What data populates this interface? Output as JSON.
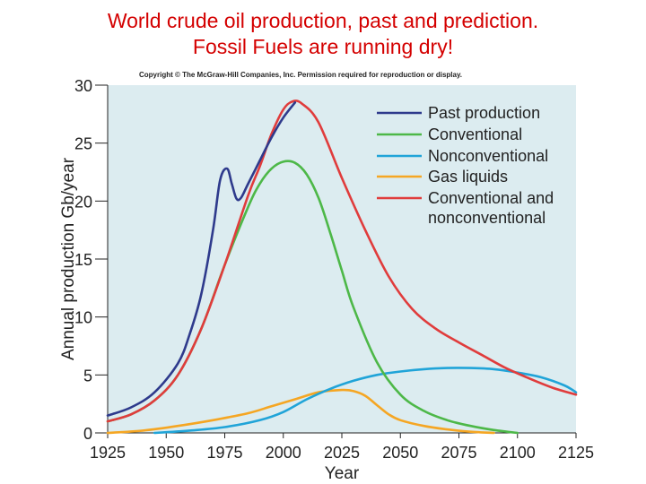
{
  "slide": {
    "title_line1": "World crude oil production, past and prediction.",
    "title_line2": "Fossil Fuels are running dry!"
  },
  "chart_data": {
    "type": "line",
    "copyright": "Copyright © The McGraw-Hill Companies, Inc. Permission required for reproduction or display.",
    "xlabel": "Year",
    "ylabel": "Annual production Gb/year",
    "xlim": [
      1925,
      2125
    ],
    "ylim": [
      0,
      30
    ],
    "xticks": [
      "1925",
      "1950",
      "1975",
      "2000",
      "2025",
      "2050",
      "2075",
      "2100",
      "2125"
    ],
    "yticks": [
      "0",
      "5",
      "10",
      "15",
      "20",
      "25",
      "30"
    ],
    "plot_background": "#dcecf0",
    "legend_position": "top-right",
    "series": [
      {
        "name": "Past production",
        "color": "#2e3a8c",
        "x": [
          1925,
          1935,
          1945,
          1955,
          1960,
          1965,
          1970,
          1973,
          1976,
          1978,
          1980,
          1982,
          1985,
          1990,
          1995,
          2000,
          2005
        ],
        "y": [
          1.5,
          2.2,
          3.5,
          6,
          8.5,
          12,
          17.5,
          21.8,
          22.8,
          21.5,
          20.2,
          20.3,
          21.5,
          23.5,
          25.5,
          27.2,
          28.5
        ]
      },
      {
        "name": "Conventional",
        "color": "#4db848",
        "x": [
          1925,
          1935,
          1945,
          1955,
          1965,
          1975,
          1985,
          1990,
          1995,
          2000,
          2005,
          2010,
          2015,
          2020,
          2025,
          2030,
          2040,
          2050,
          2060,
          2070,
          2080,
          2090,
          2100
        ],
        "y": [
          1,
          1.6,
          2.8,
          5,
          9,
          14.5,
          19.5,
          21.5,
          22.8,
          23.4,
          23.3,
          22.3,
          20.3,
          17.3,
          14,
          10.8,
          6.1,
          3.3,
          1.9,
          1.1,
          0.6,
          0.25,
          0
        ]
      },
      {
        "name": "Nonconventional",
        "color": "#20a4d8",
        "x": [
          1945,
          1960,
          1975,
          1990,
          2000,
          2010,
          2020,
          2030,
          2040,
          2050,
          2060,
          2070,
          2080,
          2090,
          2100,
          2110,
          2120,
          2125
        ],
        "y": [
          0,
          0.2,
          0.5,
          1.1,
          1.8,
          2.9,
          3.8,
          4.5,
          5,
          5.3,
          5.5,
          5.6,
          5.6,
          5.5,
          5.2,
          4.8,
          4.1,
          3.5
        ]
      },
      {
        "name": "Gas liquids",
        "color": "#f5a623",
        "x": [
          1925,
          1940,
          1955,
          1970,
          1985,
          1995,
          2005,
          2015,
          2025,
          2030,
          2035,
          2040,
          2045,
          2050,
          2060,
          2070,
          2080,
          2090
        ],
        "y": [
          0,
          0.2,
          0.6,
          1.1,
          1.7,
          2.3,
          2.9,
          3.5,
          3.7,
          3.6,
          3.2,
          2.4,
          1.6,
          1.1,
          0.6,
          0.3,
          0.1,
          0
        ]
      },
      {
        "name": "Conventional and nonconventional",
        "color": "#e03c3c",
        "x": [
          1925,
          1935,
          1945,
          1955,
          1965,
          1975,
          1985,
          1990,
          1995,
          2000,
          2004,
          2008,
          2015,
          2025,
          2035,
          2045,
          2055,
          2065,
          2075,
          2085,
          2095,
          2105,
          2115,
          2125
        ],
        "y": [
          1,
          1.6,
          2.8,
          5,
          9,
          14.5,
          20.5,
          23,
          25.8,
          27.9,
          28.6,
          28.4,
          26.8,
          22,
          17.5,
          13.5,
          10.7,
          9,
          7.8,
          6.7,
          5.6,
          4.7,
          3.9,
          3.3
        ]
      }
    ]
  }
}
